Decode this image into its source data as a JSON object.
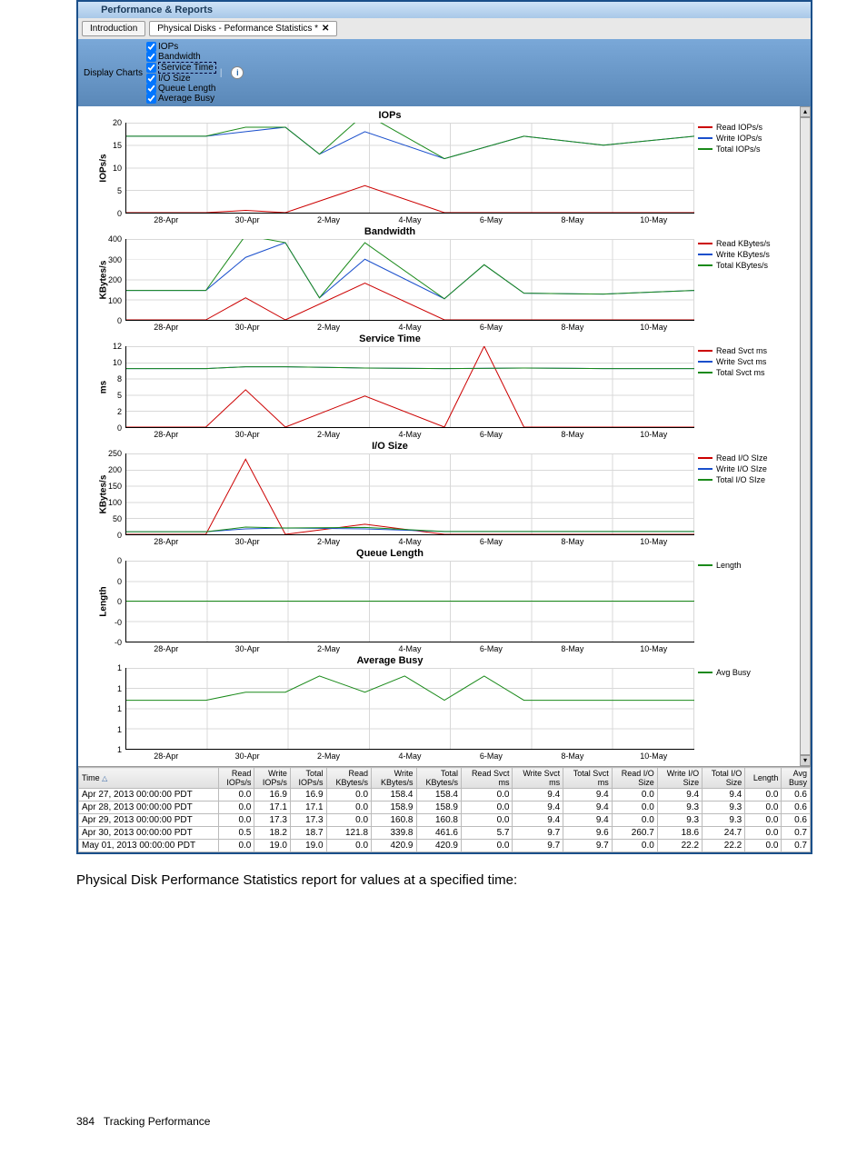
{
  "window": {
    "title": "Performance & Reports"
  },
  "tabs": [
    {
      "label": "Introduction",
      "active": false,
      "closable": false
    },
    {
      "label": "Physical Disks - Peformance Statistics *",
      "active": true,
      "closable": true
    }
  ],
  "toolbar": {
    "label": "Display Charts",
    "options": [
      {
        "label": "IOPs",
        "checked": true
      },
      {
        "label": "Bandwidth",
        "checked": true
      },
      {
        "label": "Service Time",
        "checked": true,
        "highlight": true
      },
      {
        "label": "I/O Size",
        "checked": true
      },
      {
        "label": "Queue Length",
        "checked": true
      },
      {
        "label": "Average Busy",
        "checked": true
      }
    ]
  },
  "x_ticks": [
    "28-Apr",
    "30-Apr",
    "2-May",
    "4-May",
    "6-May",
    "8-May",
    "10-May"
  ],
  "colors": {
    "red": "#cc0000",
    "blue": "#1a4fcc",
    "green": "#1a8a1a",
    "grid": "#d8d8d8"
  },
  "charts": [
    {
      "title": "IOPs",
      "y_label": "IOPs/s",
      "height": 100,
      "y_ticks": [
        "0",
        "5",
        "10",
        "15",
        "20"
      ],
      "y_max": 20,
      "legend": [
        {
          "label": "Read IOPs/s",
          "color": "#cc0000"
        },
        {
          "label": "Write IOPs/s",
          "color": "#1a4fcc"
        },
        {
          "label": "Total IOPs/s",
          "color": "#1a8a1a"
        }
      ],
      "series": [
        {
          "color": "#cc0000",
          "pts": [
            [
              0,
              0
            ],
            [
              7,
              0
            ],
            [
              14,
              0
            ],
            [
              21,
              0.5
            ],
            [
              28,
              0
            ],
            [
              42,
              6
            ],
            [
              56,
              0
            ],
            [
              70,
              0
            ],
            [
              84,
              0
            ],
            [
              100,
              0
            ]
          ]
        },
        {
          "color": "#1a4fcc",
          "pts": [
            [
              0,
              17
            ],
            [
              7,
              17
            ],
            [
              14,
              17
            ],
            [
              21,
              18
            ],
            [
              28,
              19
            ],
            [
              34,
              13
            ],
            [
              42,
              18
            ],
            [
              56,
              12
            ],
            [
              70,
              17
            ],
            [
              84,
              15
            ],
            [
              100,
              17
            ]
          ]
        },
        {
          "color": "#1a8a1a",
          "pts": [
            [
              0,
              17
            ],
            [
              7,
              17
            ],
            [
              14,
              17
            ],
            [
              21,
              19
            ],
            [
              28,
              19
            ],
            [
              34,
              13
            ],
            [
              42,
              22
            ],
            [
              56,
              12
            ],
            [
              70,
              17
            ],
            [
              84,
              15
            ],
            [
              100,
              17
            ]
          ]
        }
      ]
    },
    {
      "title": "Bandwidth",
      "y_label": "KBytes/s",
      "height": 90,
      "y_ticks": [
        "0",
        "100",
        "200",
        "300",
        "400"
      ],
      "y_max": 440,
      "legend": [
        {
          "label": "Read KBytes/s",
          "color": "#cc0000"
        },
        {
          "label": "Write KBytes/s",
          "color": "#1a4fcc"
        },
        {
          "label": "Total KBytes/s",
          "color": "#1a8a1a"
        }
      ],
      "series": [
        {
          "color": "#cc0000",
          "pts": [
            [
              0,
              0
            ],
            [
              14,
              0
            ],
            [
              21,
              120
            ],
            [
              28,
              0
            ],
            [
              42,
              200
            ],
            [
              56,
              0
            ],
            [
              70,
              0
            ],
            [
              84,
              0
            ],
            [
              100,
              0
            ]
          ]
        },
        {
          "color": "#1a4fcc",
          "pts": [
            [
              0,
              160
            ],
            [
              14,
              160
            ],
            [
              21,
              340
            ],
            [
              28,
              420
            ],
            [
              34,
              120
            ],
            [
              42,
              330
            ],
            [
              56,
              115
            ],
            [
              63,
              300
            ],
            [
              70,
              145
            ],
            [
              84,
              140
            ],
            [
              100,
              160
            ]
          ]
        },
        {
          "color": "#1a8a1a",
          "pts": [
            [
              0,
              160
            ],
            [
              14,
              160
            ],
            [
              21,
              460
            ],
            [
              28,
              420
            ],
            [
              34,
              120
            ],
            [
              42,
              420
            ],
            [
              56,
              115
            ],
            [
              63,
              300
            ],
            [
              70,
              145
            ],
            [
              84,
              140
            ],
            [
              100,
              160
            ]
          ]
        }
      ]
    },
    {
      "title": "Service Time",
      "y_label": "ms",
      "height": 90,
      "y_ticks": [
        "0",
        "2",
        "5",
        "8",
        "10",
        "12"
      ],
      "y_max": 13,
      "legend": [
        {
          "label": "Read Svct ms",
          "color": "#cc0000"
        },
        {
          "label": "Write Svct ms",
          "color": "#1a4fcc"
        },
        {
          "label": "Total Svct ms",
          "color": "#1a8a1a"
        }
      ],
      "series": [
        {
          "color": "#cc0000",
          "pts": [
            [
              0,
              0
            ],
            [
              14,
              0
            ],
            [
              21,
              6
            ],
            [
              28,
              0
            ],
            [
              42,
              5
            ],
            [
              56,
              0
            ],
            [
              63,
              13
            ],
            [
              70,
              0
            ],
            [
              84,
              0
            ],
            [
              100,
              0
            ]
          ]
        },
        {
          "color": "#1a4fcc",
          "pts": [
            [
              0,
              9.4
            ],
            [
              14,
              9.4
            ],
            [
              21,
              9.7
            ],
            [
              28,
              9.7
            ],
            [
              42,
              9.5
            ],
            [
              56,
              9.4
            ],
            [
              70,
              9.5
            ],
            [
              84,
              9.4
            ],
            [
              100,
              9.4
            ]
          ]
        },
        {
          "color": "#1a8a1a",
          "pts": [
            [
              0,
              9.4
            ],
            [
              14,
              9.4
            ],
            [
              21,
              9.7
            ],
            [
              28,
              9.7
            ],
            [
              42,
              9.5
            ],
            [
              56,
              9.4
            ],
            [
              70,
              9.5
            ],
            [
              84,
              9.4
            ],
            [
              100,
              9.4
            ]
          ]
        }
      ]
    },
    {
      "title": "I/O Size",
      "y_label": "KBytes/s",
      "height": 90,
      "y_ticks": [
        "0",
        "50",
        "100",
        "150",
        "200",
        "250"
      ],
      "y_max": 280,
      "legend": [
        {
          "label": "Read I/O SIze",
          "color": "#cc0000"
        },
        {
          "label": "Write I/O SIze",
          "color": "#1a4fcc"
        },
        {
          "label": "Total I/O SIze",
          "color": "#1a8a1a"
        }
      ],
      "series": [
        {
          "color": "#cc0000",
          "pts": [
            [
              0,
              0
            ],
            [
              14,
              0
            ],
            [
              21,
              260
            ],
            [
              28,
              0
            ],
            [
              42,
              35
            ],
            [
              56,
              0
            ],
            [
              70,
              0
            ],
            [
              84,
              0
            ],
            [
              100,
              0
            ]
          ]
        },
        {
          "color": "#1a4fcc",
          "pts": [
            [
              0,
              9
            ],
            [
              14,
              9
            ],
            [
              21,
              19
            ],
            [
              28,
              22
            ],
            [
              42,
              19
            ],
            [
              56,
              10
            ],
            [
              70,
              10
            ],
            [
              84,
              10
            ],
            [
              100,
              10
            ]
          ]
        },
        {
          "color": "#1a8a1a",
          "pts": [
            [
              0,
              9
            ],
            [
              14,
              9
            ],
            [
              21,
              25
            ],
            [
              28,
              22
            ],
            [
              42,
              24
            ],
            [
              56,
              10
            ],
            [
              70,
              10
            ],
            [
              84,
              10
            ],
            [
              100,
              10
            ]
          ]
        }
      ]
    },
    {
      "title": "Queue Length",
      "y_label": "Length",
      "height": 90,
      "y_ticks": [
        "-0",
        "-0",
        "0",
        "0",
        "0"
      ],
      "y_max": 1,
      "legend": [
        {
          "label": "Length",
          "color": "#1a8a1a"
        }
      ],
      "series": [
        {
          "color": "#1a8a1a",
          "pts": [
            [
              0,
              0.5
            ],
            [
              100,
              0.5
            ]
          ]
        }
      ]
    },
    {
      "title": "Average Busy",
      "y_label": "",
      "height": 90,
      "y_ticks": [
        "1",
        "1",
        "1",
        "1",
        "1"
      ],
      "y_max": 1,
      "legend": [
        {
          "label": "Avg Busy",
          "color": "#1a8a1a"
        }
      ],
      "series": [
        {
          "color": "#1a8a1a",
          "pts": [
            [
              0,
              0.6
            ],
            [
              14,
              0.6
            ],
            [
              21,
              0.7
            ],
            [
              28,
              0.7
            ],
            [
              34,
              0.9
            ],
            [
              42,
              0.7
            ],
            [
              49,
              0.9
            ],
            [
              56,
              0.6
            ],
            [
              63,
              0.9
            ],
            [
              70,
              0.6
            ],
            [
              84,
              0.6
            ],
            [
              100,
              0.6
            ]
          ]
        }
      ]
    }
  ],
  "table": {
    "columns": [
      "Time",
      "Read IOPs/s",
      "Write IOPs/s",
      "Total IOPs/s",
      "Read KBytes/s",
      "Write KBytes/s",
      "Total KBytes/s",
      "Read Svct ms",
      "Write Svct ms",
      "Total Svct ms",
      "Read I/O Size",
      "Write I/O Size",
      "Total I/O Size",
      "Length",
      "Avg Busy"
    ],
    "rows": [
      [
        "Apr 27, 2013 00:00:00 PDT",
        "0.0",
        "16.9",
        "16.9",
        "0.0",
        "158.4",
        "158.4",
        "0.0",
        "9.4",
        "9.4",
        "0.0",
        "9.4",
        "9.4",
        "0.0",
        "0.6"
      ],
      [
        "Apr 28, 2013 00:00:00 PDT",
        "0.0",
        "17.1",
        "17.1",
        "0.0",
        "158.9",
        "158.9",
        "0.0",
        "9.4",
        "9.4",
        "0.0",
        "9.3",
        "9.3",
        "0.0",
        "0.6"
      ],
      [
        "Apr 29, 2013 00:00:00 PDT",
        "0.0",
        "17.3",
        "17.3",
        "0.0",
        "160.8",
        "160.8",
        "0.0",
        "9.4",
        "9.4",
        "0.0",
        "9.3",
        "9.3",
        "0.0",
        "0.6"
      ],
      [
        "Apr 30, 2013 00:00:00 PDT",
        "0.5",
        "18.2",
        "18.7",
        "121.8",
        "339.8",
        "461.6",
        "5.7",
        "9.7",
        "9.6",
        "260.7",
        "18.6",
        "24.7",
        "0.0",
        "0.7"
      ],
      [
        "May 01, 2013 00:00:00 PDT",
        "0.0",
        "19.0",
        "19.0",
        "0.0",
        "420.9",
        "420.9",
        "0.0",
        "9.7",
        "9.7",
        "0.0",
        "22.2",
        "22.2",
        "0.0",
        "0.7"
      ]
    ]
  },
  "caption": "Physical Disk Performance Statistics report for values at a specified time:",
  "footer": {
    "page": "384",
    "section": "Tracking Performance"
  }
}
